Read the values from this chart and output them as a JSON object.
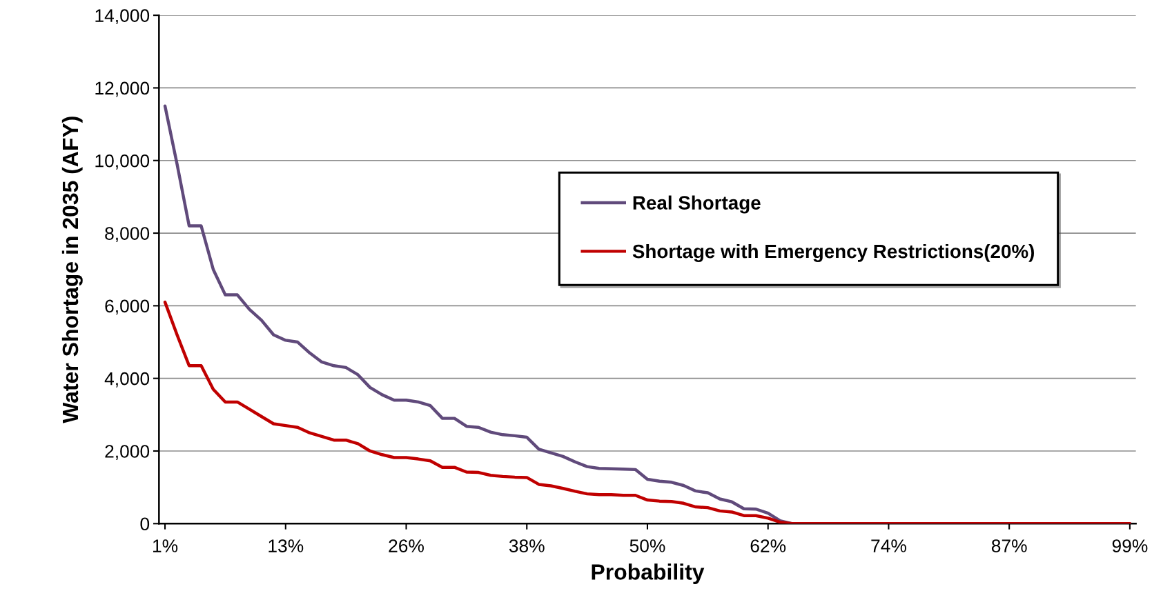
{
  "chart_data": {
    "type": "line",
    "xlabel": "Probability",
    "ylabel": "Water Shortage in 2035 (AFY)",
    "categories": [
      "1%",
      null,
      null,
      null,
      null,
      null,
      null,
      null,
      null,
      null,
      "13%",
      null,
      null,
      null,
      null,
      null,
      null,
      null,
      null,
      null,
      "26%",
      null,
      null,
      null,
      null,
      null,
      null,
      null,
      null,
      null,
      "38%",
      null,
      null,
      null,
      null,
      null,
      null,
      null,
      null,
      null,
      "50%",
      null,
      null,
      null,
      null,
      null,
      null,
      null,
      null,
      null,
      "62%",
      null,
      null,
      null,
      null,
      null,
      null,
      null,
      null,
      null,
      "74%",
      null,
      null,
      null,
      null,
      null,
      null,
      null,
      null,
      null,
      "87%",
      null,
      null,
      null,
      null,
      null,
      null,
      null,
      null,
      null,
      "99%"
    ],
    "series": [
      {
        "name": "Real Shortage",
        "color": "#604a7b",
        "values": [
          11500,
          9900,
          8200,
          8200,
          7000,
          6300,
          6300,
          5900,
          5600,
          5200,
          5050,
          5000,
          4700,
          4450,
          4350,
          4300,
          4100,
          3750,
          3550,
          3400,
          3400,
          3350,
          3250,
          2900,
          2900,
          2680,
          2650,
          2520,
          2450,
          2420,
          2380,
          2050,
          1950,
          1850,
          1700,
          1570,
          1520,
          1510,
          1500,
          1490,
          1220,
          1170,
          1140,
          1050,
          900,
          850,
          680,
          600,
          410,
          400,
          290,
          80,
          0,
          0,
          0,
          0,
          0,
          0,
          0,
          0,
          0,
          0,
          0,
          0,
          0,
          0,
          0,
          0,
          0,
          0,
          0,
          0,
          0,
          0,
          0,
          0,
          0,
          0,
          0,
          0,
          0
        ]
      },
      {
        "name": "Shortage with Emergency Restrictions(20%)",
        "color": "#c00000",
        "values": [
          6100,
          5200,
          4350,
          4350,
          3700,
          3350,
          3350,
          3150,
          2950,
          2750,
          2700,
          2650,
          2500,
          2400,
          2300,
          2300,
          2200,
          2000,
          1900,
          1820,
          1820,
          1780,
          1730,
          1550,
          1550,
          1420,
          1410,
          1330,
          1300,
          1280,
          1270,
          1080,
          1040,
          970,
          890,
          820,
          800,
          800,
          780,
          780,
          650,
          620,
          610,
          560,
          460,
          440,
          350,
          320,
          220,
          220,
          150,
          40,
          0,
          0,
          0,
          0,
          0,
          0,
          0,
          0,
          0,
          0,
          0,
          0,
          0,
          0,
          0,
          0,
          0,
          0,
          0,
          0,
          0,
          0,
          0,
          0,
          0,
          0,
          0,
          0,
          0
        ]
      }
    ],
    "ylim": [
      0,
      14000
    ],
    "yticks": [
      0,
      {
        "value": 2000,
        "label": "2,000"
      },
      {
        "value": 4000,
        "label": "4,000"
      },
      {
        "value": 6000,
        "label": "6,000"
      },
      {
        "value": 8000,
        "label": "8,000"
      },
      {
        "value": 10000,
        "label": "10,000"
      },
      {
        "value": 12000,
        "label": "12,000"
      },
      {
        "value": 14000,
        "label": "14,000"
      }
    ],
    "grid": "y",
    "legend": "right",
    "marker": "none",
    "line_style": "solid"
  }
}
